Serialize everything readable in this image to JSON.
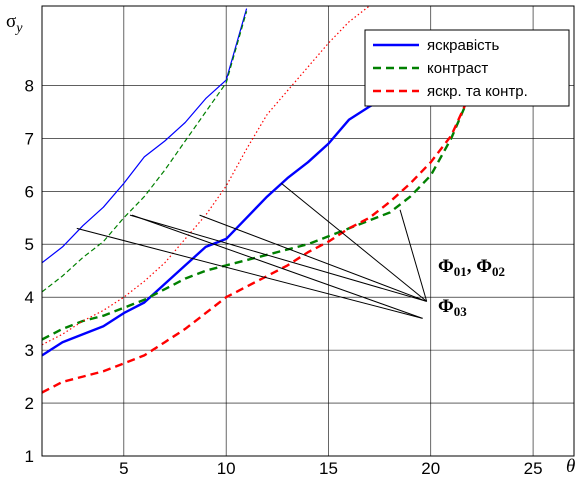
{
  "chart_data": {
    "type": "line",
    "ylabel_symbol": "σ",
    "ylabel_sub": "y",
    "xlabel": "θ",
    "xlim": [
      1,
      27
    ],
    "ylim": [
      1,
      9.5
    ],
    "xticks": [
      5,
      10,
      15,
      20,
      25
    ],
    "yticks": [
      2,
      3,
      4,
      5,
      6,
      7,
      8
    ],
    "grid": true,
    "legend_position": "top-right",
    "series": [
      {
        "name": "яскравість",
        "color": "#0000ff",
        "style": "solid",
        "legend": true,
        "x": [
          1,
          2,
          3,
          4,
          5,
          6,
          7,
          8,
          9,
          10,
          11,
          12,
          13,
          14,
          15,
          16,
          17,
          18
        ],
        "y": [
          2.9,
          3.15,
          3.3,
          3.45,
          3.7,
          3.9,
          4.25,
          4.6,
          4.95,
          5.1,
          5.5,
          5.9,
          6.25,
          6.55,
          6.9,
          7.35,
          7.6,
          7.8
        ]
      },
      {
        "name": "контраст",
        "color": "#008000",
        "style": "dashed",
        "legend": true,
        "x": [
          1,
          2,
          3,
          4,
          5,
          6,
          7,
          8,
          9,
          10,
          11,
          12,
          13,
          14,
          15,
          16,
          17,
          18,
          19,
          20,
          21,
          22
        ],
        "y": [
          3.2,
          3.4,
          3.55,
          3.65,
          3.8,
          3.95,
          4.15,
          4.35,
          4.5,
          4.6,
          4.7,
          4.8,
          4.9,
          5.0,
          5.15,
          5.3,
          5.45,
          5.6,
          5.9,
          6.3,
          7.0,
          7.9
        ]
      },
      {
        "name": "яскр. та контр.",
        "color": "#ff0000",
        "style": "dashed",
        "legend": true,
        "x": [
          1,
          2,
          3,
          4,
          5,
          6,
          7,
          8,
          9,
          10,
          11,
          12,
          13,
          14,
          15,
          16,
          17,
          18,
          19,
          20,
          21,
          22,
          23
        ],
        "y": [
          2.2,
          2.4,
          2.5,
          2.6,
          2.75,
          2.9,
          3.15,
          3.4,
          3.7,
          4.0,
          4.2,
          4.4,
          4.6,
          4.85,
          5.05,
          5.3,
          5.5,
          5.8,
          6.15,
          6.55,
          7.05,
          7.9,
          9.0
        ]
      },
      {
        "name": "",
        "color": "#0000ff",
        "style": "thin",
        "legend": false,
        "x": [
          1,
          2,
          3,
          4,
          5,
          6,
          7,
          8,
          9,
          10,
          11
        ],
        "y": [
          4.65,
          4.95,
          5.35,
          5.7,
          6.15,
          6.65,
          6.95,
          7.3,
          7.75,
          8.1,
          9.45
        ]
      },
      {
        "name": "",
        "color": "#008000",
        "style": "thin-dashed",
        "legend": false,
        "x": [
          1,
          2,
          3,
          4,
          5,
          6,
          7,
          8,
          9,
          10,
          11
        ],
        "y": [
          4.1,
          4.4,
          4.75,
          5.05,
          5.5,
          5.9,
          6.4,
          6.95,
          7.5,
          8.05,
          9.4
        ]
      },
      {
        "name": "",
        "color": "#ff0000",
        "style": "dotted",
        "legend": false,
        "x": [
          1,
          2,
          3,
          4,
          5,
          6,
          7,
          8,
          9,
          10,
          11,
          12,
          13,
          14,
          15,
          16,
          17
        ],
        "y": [
          3.1,
          3.3,
          3.55,
          3.75,
          4.0,
          4.3,
          4.65,
          5.1,
          5.55,
          6.1,
          6.8,
          7.45,
          7.9,
          8.35,
          8.8,
          9.2,
          9.5
        ]
      }
    ],
    "annotations": [
      {
        "main": "Φ",
        "sub1": "01",
        "sep": ", ",
        "main2": "Φ",
        "sub2": "02",
        "anchor": [
          19.8,
          3.92
        ],
        "targets": [
          [
            12.7,
            6.15
          ],
          [
            8.7,
            5.55
          ],
          [
            5.3,
            5.55
          ],
          [
            18.5,
            5.65
          ]
        ]
      },
      {
        "main": "Φ",
        "sub1": "03",
        "sep": "",
        "main2": "",
        "sub2": "",
        "anchor": [
          19.6,
          3.6
        ],
        "targets": [
          [
            2.7,
            5.3
          ],
          [
            5.4,
            5.55
          ]
        ]
      }
    ]
  }
}
